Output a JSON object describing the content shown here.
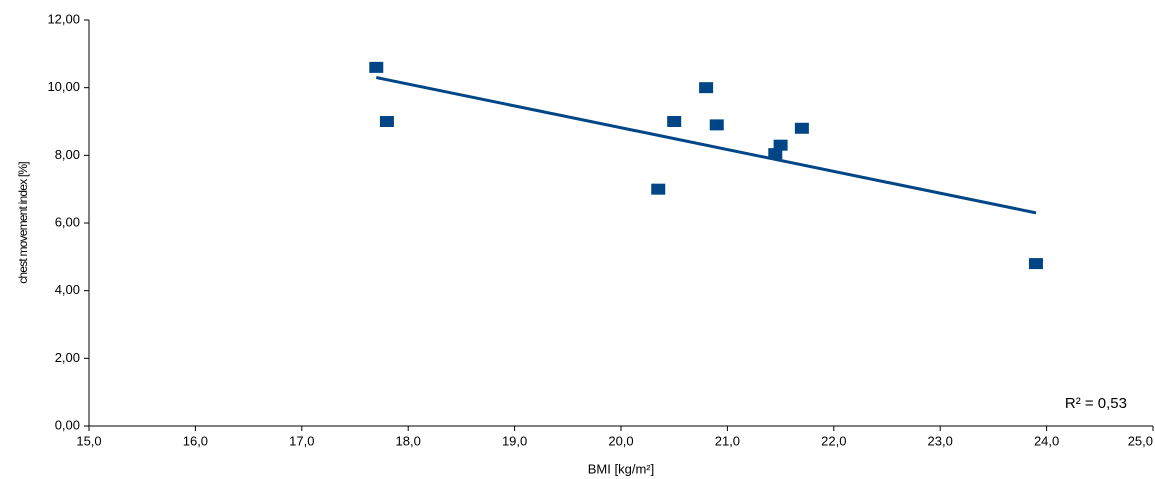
{
  "chart_data": {
    "type": "scatter",
    "x_label": "BMI [kg/m²]",
    "y_label": "chest movement index [%]",
    "annotation": "R² = 0,53",
    "series": [
      {
        "color": "#004586",
        "x": [
          17.7,
          17.8,
          20.35,
          20.5,
          20.8,
          20.9,
          21.45,
          21.5,
          21.7,
          23.9
        ],
        "values": [
          10.6,
          9.0,
          7.0,
          9.0,
          10.0,
          8.9,
          8.05,
          8.3,
          8.8,
          4.8
        ]
      }
    ],
    "trendline": {
      "color": "#004586",
      "x": [
        17.7,
        23.9
      ],
      "values": [
        10.3,
        6.3
      ]
    },
    "xlim": [
      15,
      25
    ],
    "ylim": [
      0,
      12
    ],
    "xticks": [
      {
        "value": 15,
        "label": "15,0"
      },
      {
        "value": 16,
        "label": "16,0"
      },
      {
        "value": 17,
        "label": "17,0"
      },
      {
        "value": 18,
        "label": "18,0"
      },
      {
        "value": 19,
        "label": "19,0"
      },
      {
        "value": 20,
        "label": "20,0"
      },
      {
        "value": 21,
        "label": "21,0"
      },
      {
        "value": 22,
        "label": "22,0"
      },
      {
        "value": 23,
        "label": "23,0"
      },
      {
        "value": 24,
        "label": "24,0"
      },
      {
        "value": 25,
        "label": "25,0"
      }
    ],
    "yticks": [
      {
        "value": 0,
        "label": "0,00"
      },
      {
        "value": 2,
        "label": "2,00"
      },
      {
        "value": 4,
        "label": "4,00"
      },
      {
        "value": 6,
        "label": "6,00"
      },
      {
        "value": 8,
        "label": "8,00"
      },
      {
        "value": 10,
        "label": "10,00"
      },
      {
        "value": 12,
        "label": "12,00"
      }
    ],
    "grid": false
  }
}
